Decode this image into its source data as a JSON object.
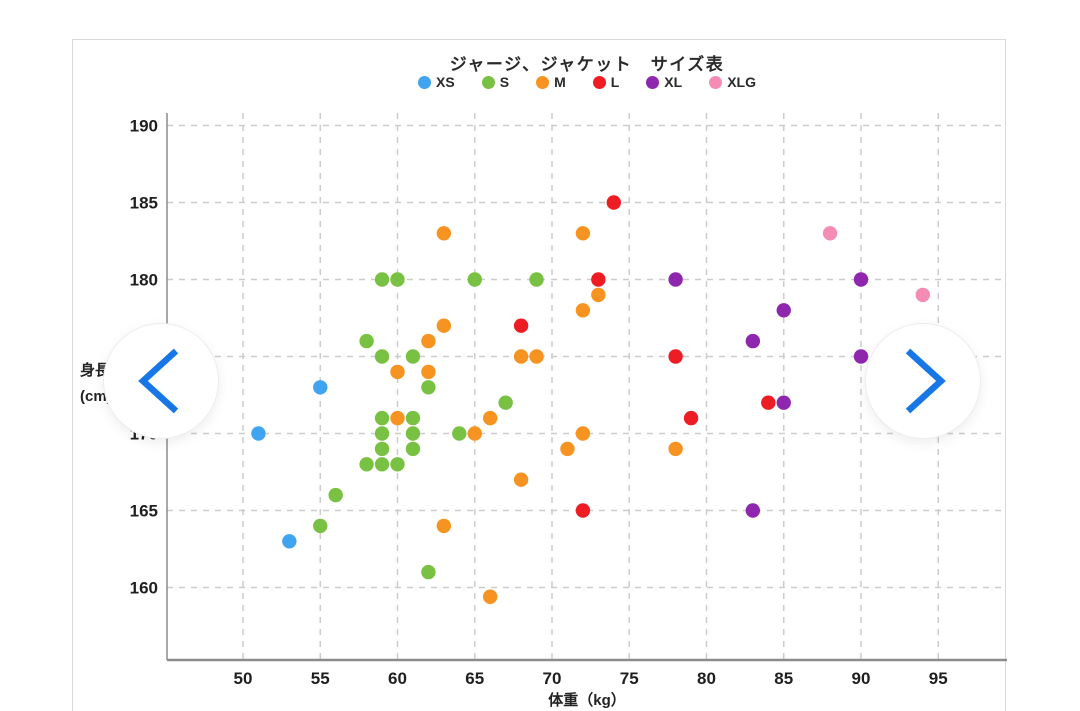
{
  "title": "ジャージ、ジャケット　サイズ表",
  "legend": [
    {
      "label": "XS",
      "color": "#41a4f1"
    },
    {
      "label": "S",
      "color": "#79c143"
    },
    {
      "label": "M",
      "color": "#f79421"
    },
    {
      "label": "L",
      "color": "#ee1c23"
    },
    {
      "label": "XL",
      "color": "#8e27ad"
    },
    {
      "label": "XLG",
      "color": "#f48cb5"
    }
  ],
  "icons": {
    "prev": "chevron-left-icon",
    "next": "chevron-right-icon"
  },
  "colors": {
    "accent_blue": "#1877e6",
    "grid": "#cccccc",
    "axis": "#8c8c8c",
    "text": "#1f1f1f"
  },
  "chart_data": {
    "type": "scatter",
    "title": "ジャージ、ジャケット　サイズ表",
    "xlabel": "体重（kg）",
    "ylabel": "身長 (cm)",
    "ylabel_line1": "身長",
    "ylabel_line2": "(cm)",
    "xlim": [
      45,
      99
    ],
    "ylim": [
      155,
      191
    ],
    "xticks": [
      50,
      55,
      60,
      65,
      70,
      75,
      80,
      85,
      90,
      95
    ],
    "yticks": [
      160,
      165,
      170,
      175,
      180,
      185,
      190
    ],
    "grid": true,
    "legend_position": "top",
    "series": [
      {
        "name": "XS",
        "color": "#41a4f1",
        "points": [
          [
            51,
            170
          ],
          [
            55,
            173
          ],
          [
            53,
            163
          ]
        ]
      },
      {
        "name": "S",
        "color": "#79c143",
        "points": [
          [
            59,
            180
          ],
          [
            60,
            180
          ],
          [
            65,
            180
          ],
          [
            69,
            180
          ],
          [
            58,
            176
          ],
          [
            59,
            175
          ],
          [
            61,
            175
          ],
          [
            62,
            173
          ],
          [
            67,
            172
          ],
          [
            59,
            171
          ],
          [
            61,
            171
          ],
          [
            59,
            170
          ],
          [
            61,
            170
          ],
          [
            64,
            170
          ],
          [
            59,
            169
          ],
          [
            61,
            169
          ],
          [
            58,
            168
          ],
          [
            59,
            168
          ],
          [
            60,
            168
          ],
          [
            56,
            166
          ],
          [
            55,
            164
          ],
          [
            62,
            161
          ]
        ]
      },
      {
        "name": "M",
        "color": "#f79421",
        "points": [
          [
            63,
            183
          ],
          [
            72,
            183
          ],
          [
            73,
            179
          ],
          [
            72,
            178
          ],
          [
            63,
            177
          ],
          [
            62,
            176
          ],
          [
            68,
            175
          ],
          [
            69,
            175
          ],
          [
            60,
            174
          ],
          [
            62,
            174
          ],
          [
            60,
            171
          ],
          [
            66,
            171
          ],
          [
            65,
            170
          ],
          [
            72,
            170
          ],
          [
            71,
            169
          ],
          [
            78,
            169
          ],
          [
            68,
            167
          ],
          [
            63,
            164
          ],
          [
            66,
            159.4
          ]
        ]
      },
      {
        "name": "L",
        "color": "#ee1c23",
        "points": [
          [
            74,
            185
          ],
          [
            73,
            180
          ],
          [
            68,
            177
          ],
          [
            78,
            175
          ],
          [
            84,
            172
          ],
          [
            79,
            171
          ],
          [
            72,
            165
          ]
        ]
      },
      {
        "name": "XL",
        "color": "#8e27ad",
        "points": [
          [
            78,
            180
          ],
          [
            90,
            180
          ],
          [
            85,
            178
          ],
          [
            83,
            176
          ],
          [
            90,
            175
          ],
          [
            85,
            172
          ],
          [
            83,
            165
          ]
        ]
      },
      {
        "name": "XLG",
        "color": "#f48cb5",
        "points": [
          [
            88,
            183
          ],
          [
            94,
            179
          ]
        ]
      }
    ]
  }
}
